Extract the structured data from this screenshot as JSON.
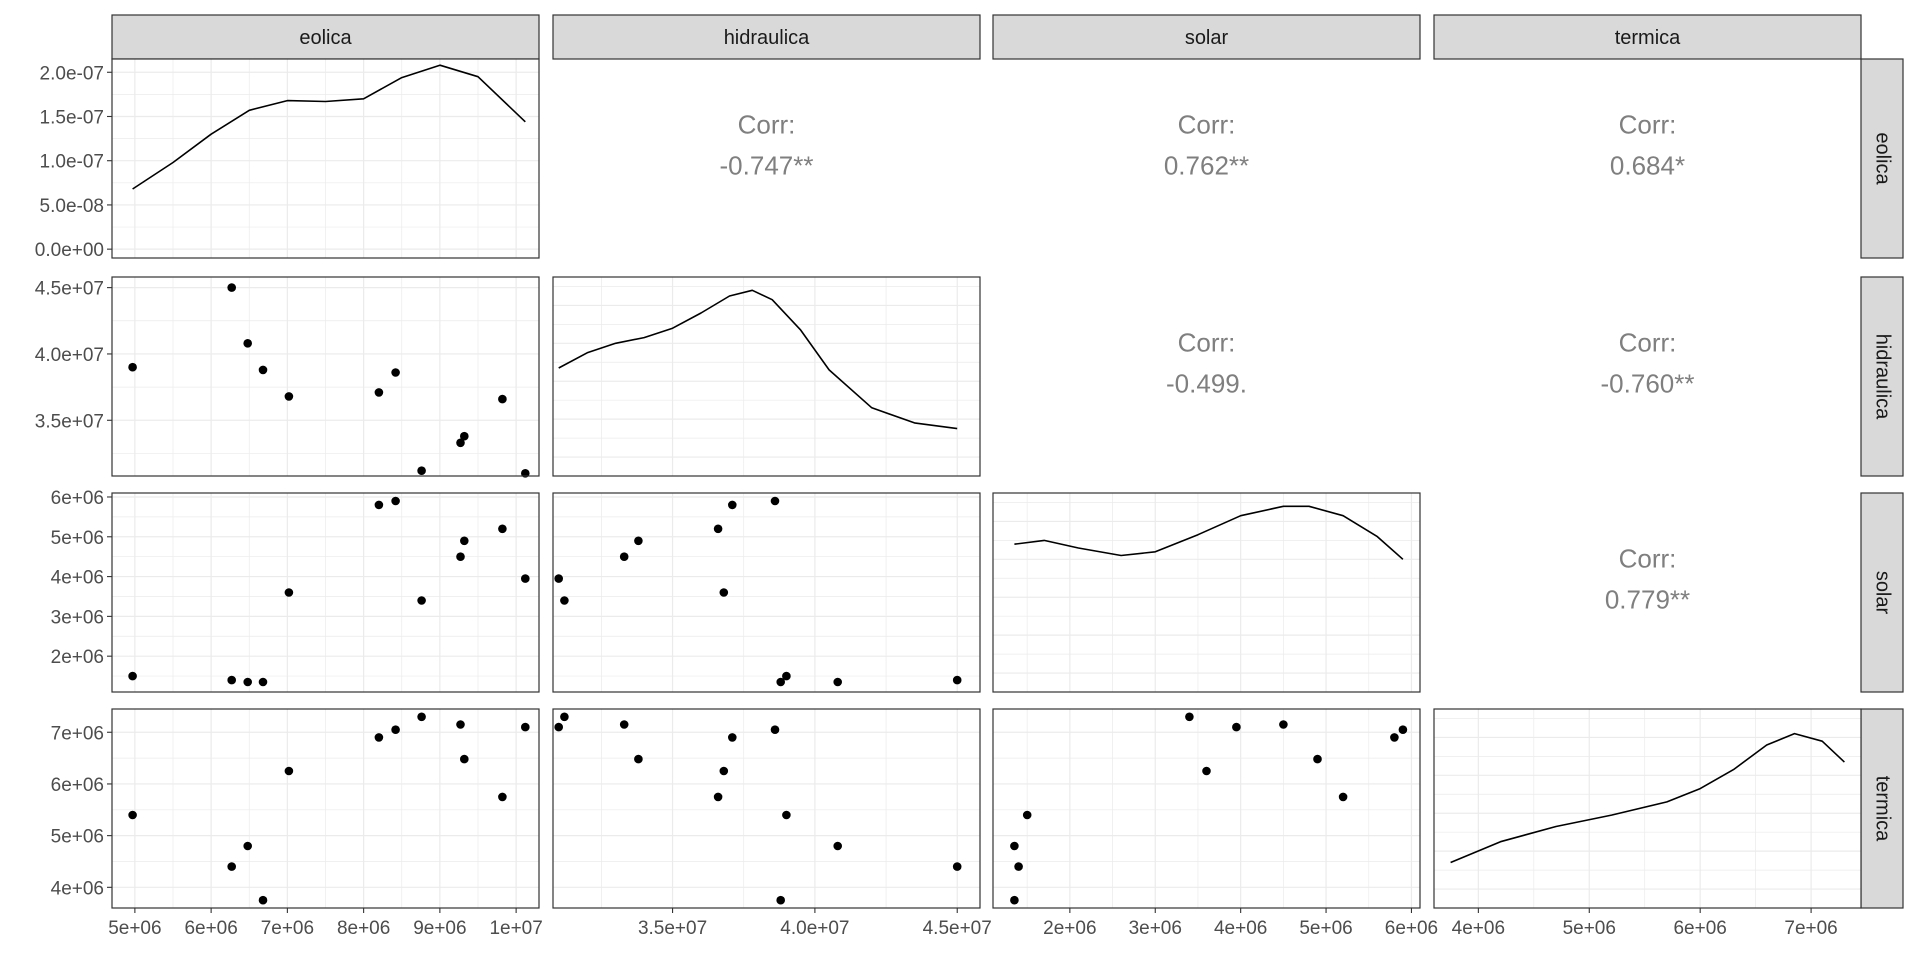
{
  "vars": [
    "eolica",
    "hidraulica",
    "solar",
    "termica"
  ],
  "chart_data": {
    "type": "scatter",
    "layout": "pairs-matrix",
    "title": "",
    "variables": [
      "eolica",
      "hidraulica",
      "solar",
      "termica"
    ],
    "ranges": {
      "eolica": [
        4700000.0,
        10300000.0
      ],
      "hidraulica": [
        30800000.0,
        45800000.0
      ],
      "solar": [
        1100000.0,
        6100000.0
      ],
      "termica": [
        3600000.0,
        7450000.0
      ]
    },
    "ticks": {
      "eolica": {
        "values": [
          5000000.0,
          6000000.0,
          7000000.0,
          8000000.0,
          9000000.0,
          10000000.0
        ],
        "labels": [
          "5e+06",
          "6e+06",
          "7e+06",
          "8e+06",
          "9e+06",
          "1e+07"
        ]
      },
      "hidraulica_x": {
        "values": [
          35000000.0,
          40000000.0,
          45000000.0
        ],
        "labels": [
          "3.5e+07",
          "4.0e+07",
          "4.5e+07"
        ]
      },
      "hidraulica_y": {
        "values": [
          35000000.0,
          40000000.0,
          45000000.0
        ],
        "labels": [
          "3.5e+07",
          "4.0e+07",
          "4.5e+07"
        ]
      },
      "solar_x": {
        "values": [
          2000000.0,
          3000000.0,
          4000000.0,
          5000000.0,
          6000000.0
        ],
        "labels": [
          "2e+06",
          "3e+06",
          "4e+06",
          "5e+06",
          "6e+06"
        ]
      },
      "solar_y": {
        "values": [
          2000000.0,
          3000000.0,
          4000000.0,
          5000000.0,
          6000000.0
        ],
        "labels": [
          "2e+06",
          "3e+06",
          "4e+06",
          "5e+06",
          "6e+06"
        ]
      },
      "termica_x": {
        "values": [
          4000000.0,
          5000000.0,
          6000000.0,
          7000000.0
        ],
        "labels": [
          "4e+06",
          "5e+06",
          "6e+06",
          "7e+06"
        ]
      },
      "termica_y": {
        "values": [
          4000000.0,
          5000000.0,
          6000000.0,
          7000000.0
        ],
        "labels": [
          "4e+06",
          "5e+06",
          "6e+06",
          "7e+06"
        ]
      },
      "density": {
        "values": [
          0,
          5e-08,
          1e-07,
          1.5e-07,
          2e-07
        ],
        "labels": [
          "0.0e+00",
          "5.0e-08",
          "1.0e-07",
          "1.5e-07",
          "2.0e-07"
        ]
      }
    },
    "density_ylim": [
      -1e-08,
      2.15e-07
    ],
    "observations": [
      {
        "eolica": 4970000.0,
        "hidraulica": 39000000.0,
        "solar": 1500000.0,
        "termica": 5400000.0
      },
      {
        "eolica": 6270000.0,
        "hidraulica": 45000000.0,
        "solar": 1400000.0,
        "termica": 4400000.0
      },
      {
        "eolica": 6480000.0,
        "hidraulica": 40800000.0,
        "solar": 1350000.0,
        "termica": 4800000.0
      },
      {
        "eolica": 6680000.0,
        "hidraulica": 38800000.0,
        "solar": 1350000.0,
        "termica": 3750000.0
      },
      {
        "eolica": 7020000.0,
        "hidraulica": 36800000.0,
        "solar": 3600000.0,
        "termica": 6250000.0
      },
      {
        "eolica": 8200000.0,
        "hidraulica": 37100000.0,
        "solar": 5800000.0,
        "termica": 6900000.0
      },
      {
        "eolica": 8420000.0,
        "hidraulica": 38600000.0,
        "solar": 5900000.0,
        "termica": 7050000.0
      },
      {
        "eolica": 8760000.0,
        "hidraulica": 31200000.0,
        "solar": 3400000.0,
        "termica": 7300000.0
      },
      {
        "eolica": 9270000.0,
        "hidraulica": 33300000.0,
        "solar": 4500000.0,
        "termica": 7150000.0
      },
      {
        "eolica": 9320000.0,
        "hidraulica": 33800000.0,
        "solar": 4900000.0,
        "termica": 6480000.0
      },
      {
        "eolica": 9820000.0,
        "hidraulica": 36600000.0,
        "solar": 5200000.0,
        "termica": 5750000.0
      },
      {
        "eolica": 10120000.0,
        "hidraulica": 31000000.0,
        "solar": 3950000.0,
        "termica": 7100000.0
      }
    ],
    "densities": {
      "eolica": {
        "x": [
          4970000.0,
          5500000.0,
          6000000.0,
          6500000.0,
          7000000.0,
          7500000.0,
          8000000.0,
          8500000.0,
          9000000.0,
          9500000.0,
          10120000.0
        ],
        "y": [
          6.8e-08,
          9.8e-08,
          1.3e-07,
          1.57e-07,
          1.68e-07,
          1.67e-07,
          1.7e-07,
          1.94e-07,
          2.08e-07,
          1.95e-07,
          1.44e-07
        ]
      },
      "hidraulica": {
        "x": [
          31000000.0,
          32000000.0,
          33000000.0,
          34000000.0,
          35000000.0,
          36000000.0,
          37000000.0,
          37800000.0,
          38500000.0,
          39500000.0,
          40500000.0,
          42000000.0,
          43500000.0,
          45000000.0
        ],
        "y": [
          0.57,
          0.65,
          0.7,
          0.73,
          0.78,
          0.86,
          0.95,
          0.98,
          0.93,
          0.77,
          0.56,
          0.36,
          0.28,
          0.25
        ]
      },
      "solar": {
        "x": [
          1350000.0,
          1700000.0,
          2100000.0,
          2600000.0,
          3000000.0,
          3500000.0,
          4000000.0,
          4500000.0,
          4800000.0,
          5200000.0,
          5600000.0,
          5900000.0
        ],
        "y": [
          0.78,
          0.8,
          0.76,
          0.72,
          0.74,
          0.83,
          0.93,
          0.98,
          0.98,
          0.93,
          0.82,
          0.7
        ]
      },
      "termica": {
        "x": [
          3750000.0,
          4200000.0,
          4700000.0,
          5200000.0,
          5700000.0,
          6000000.0,
          6300000.0,
          6600000.0,
          6850000.0,
          7100000.0,
          7300000.0
        ],
        "y": [
          0.24,
          0.35,
          0.43,
          0.49,
          0.56,
          0.63,
          0.73,
          0.86,
          0.92,
          0.88,
          0.77
        ]
      }
    },
    "correlations": [
      {
        "row": "eolica",
        "col": "hidraulica",
        "label": "Corr:",
        "value": "-0.747**"
      },
      {
        "row": "eolica",
        "col": "solar",
        "label": "Corr:",
        "value": "0.762**"
      },
      {
        "row": "eolica",
        "col": "termica",
        "label": "Corr:",
        "value": "0.684*"
      },
      {
        "row": "hidraulica",
        "col": "solar",
        "label": "Corr:",
        "value": "-0.499."
      },
      {
        "row": "hidraulica",
        "col": "termica",
        "label": "Corr:",
        "value": "-0.760**"
      },
      {
        "row": "solar",
        "col": "termica",
        "label": "Corr:",
        "value": "0.779**"
      }
    ]
  }
}
